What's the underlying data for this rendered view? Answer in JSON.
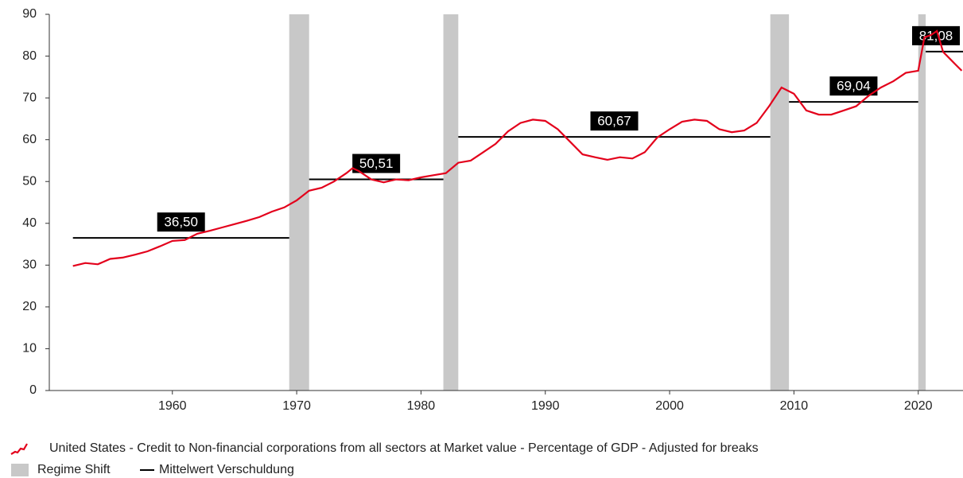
{
  "chart_data": {
    "type": "line",
    "xlim": [
      1950.1,
      2023.6
    ],
    "ylim": [
      0,
      90
    ],
    "xticks": [
      1960,
      1970,
      1980,
      1990,
      2000,
      2010,
      2020
    ],
    "yticks": [
      0,
      10,
      20,
      30,
      40,
      50,
      60,
      70,
      80,
      90
    ],
    "series": [
      {
        "name": "United States - Credit to Non-financial corporations from all sectors at Market value - Percentage of GDP - Adjusted for breaks",
        "color": "#e3001b",
        "x": [
          1952,
          1953,
          1954,
          1955,
          1956,
          1957,
          1958,
          1959,
          1960,
          1961,
          1962,
          1963,
          1964,
          1965,
          1966,
          1967,
          1968,
          1969,
          1970,
          1971,
          1972,
          1973,
          1974,
          1974.5,
          1975,
          1976,
          1977,
          1978,
          1979,
          1980,
          1981,
          1982,
          1983,
          1984,
          1985,
          1986,
          1987,
          1988,
          1989,
          1990,
          1991,
          1992,
          1993,
          1994,
          1995,
          1996,
          1997,
          1998,
          1999,
          2000,
          2001,
          2002,
          2003,
          2004,
          2005,
          2006,
          2007,
          2008,
          2009,
          2010,
          2011,
          2012,
          2013,
          2014,
          2015,
          2016,
          2017,
          2018,
          2019,
          2020,
          2020.5,
          2021,
          2021.5,
          2022,
          2022.5,
          2023,
          2023.5
        ],
        "values": [
          29.8,
          30.5,
          30.2,
          31.5,
          31.8,
          32.5,
          33.3,
          34.5,
          35.8,
          36.0,
          37.5,
          38.2,
          39.0,
          39.8,
          40.6,
          41.5,
          42.8,
          43.8,
          45.5,
          47.8,
          48.5,
          50.0,
          52.0,
          53.2,
          52.5,
          50.5,
          49.8,
          50.5,
          50.3,
          51.0,
          51.5,
          52.0,
          54.5,
          55.0,
          57.0,
          59.0,
          62.0,
          64.0,
          64.8,
          64.5,
          62.5,
          59.5,
          56.5,
          55.8,
          55.2,
          55.8,
          55.5,
          57.0,
          60.5,
          62.5,
          64.3,
          64.8,
          64.5,
          62.5,
          61.8,
          62.2,
          64.0,
          68.0,
          72.5,
          71.0,
          67.0,
          66.0,
          66.0,
          67.0,
          68.0,
          70.5,
          72.5,
          74.0,
          76.0,
          76.5,
          84.5,
          85.0,
          86.0,
          81.0,
          79.5,
          78.0,
          76.5
        ]
      }
    ],
    "regime_shifts": {
      "name": "Regime Shift",
      "color": "#c8c8c8",
      "ranges": [
        [
          1969.4,
          1971.0
        ],
        [
          1981.8,
          1983.0
        ],
        [
          2008.1,
          2009.6
        ],
        [
          2020.0,
          2020.6
        ]
      ]
    },
    "means": {
      "name": "Mittelwert Verschuldung",
      "color": "#000000",
      "segments": [
        {
          "x": [
            1952,
            1969.4
          ],
          "value": 36.5,
          "label": "36,50"
        },
        {
          "x": [
            1971.0,
            1981.8
          ],
          "value": 50.51,
          "label": "50,51"
        },
        {
          "x": [
            1983.0,
            2008.1
          ],
          "value": 60.67,
          "label": "60,67"
        },
        {
          "x": [
            2009.6,
            2020.0
          ],
          "value": 69.04,
          "label": "69,04"
        },
        {
          "x": [
            2020.6,
            2023.6
          ],
          "value": 81.08,
          "label": "81,08"
        }
      ]
    }
  }
}
